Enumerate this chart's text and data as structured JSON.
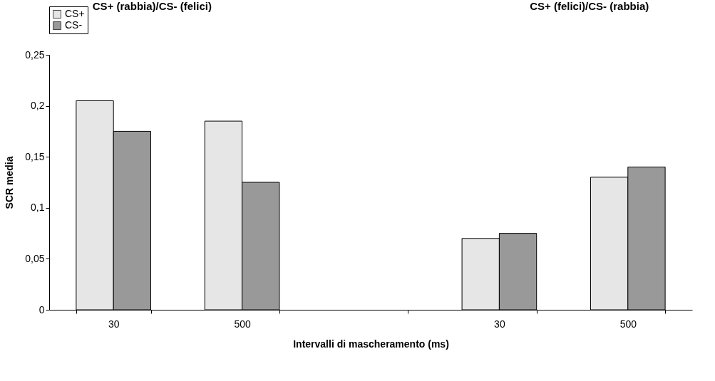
{
  "chart_data": {
    "type": "bar",
    "xlabel": "Intervalli di mascheramento (ms)",
    "ylabel": "SCR media",
    "annotations": [
      "CS+ (rabbia)/CS- (felici)",
      "CS+ (felici)/CS- (rabbia)"
    ],
    "categories": [
      "30",
      "500",
      null,
      "30",
      "500"
    ],
    "series": [
      {
        "name": "CS+",
        "color": "#e6e6e6",
        "values": [
          0.205,
          0.185,
          null,
          0.07,
          0.13
        ]
      },
      {
        "name": "CS-",
        "color": "#999999",
        "values": [
          0.175,
          0.125,
          null,
          0.075,
          0.14
        ]
      }
    ],
    "ylim": [
      0,
      0.25
    ],
    "yticks": [
      0,
      {
        "value": 0.05,
        "label": "0,05"
      },
      {
        "value": 0.1,
        "label": "0,1"
      },
      {
        "value": 0.15,
        "label": "0,15"
      },
      {
        "value": 0.2,
        "label": "0,2"
      },
      {
        "value": 0.25,
        "label": "0,25"
      }
    ],
    "grid": false,
    "legend": "top"
  }
}
